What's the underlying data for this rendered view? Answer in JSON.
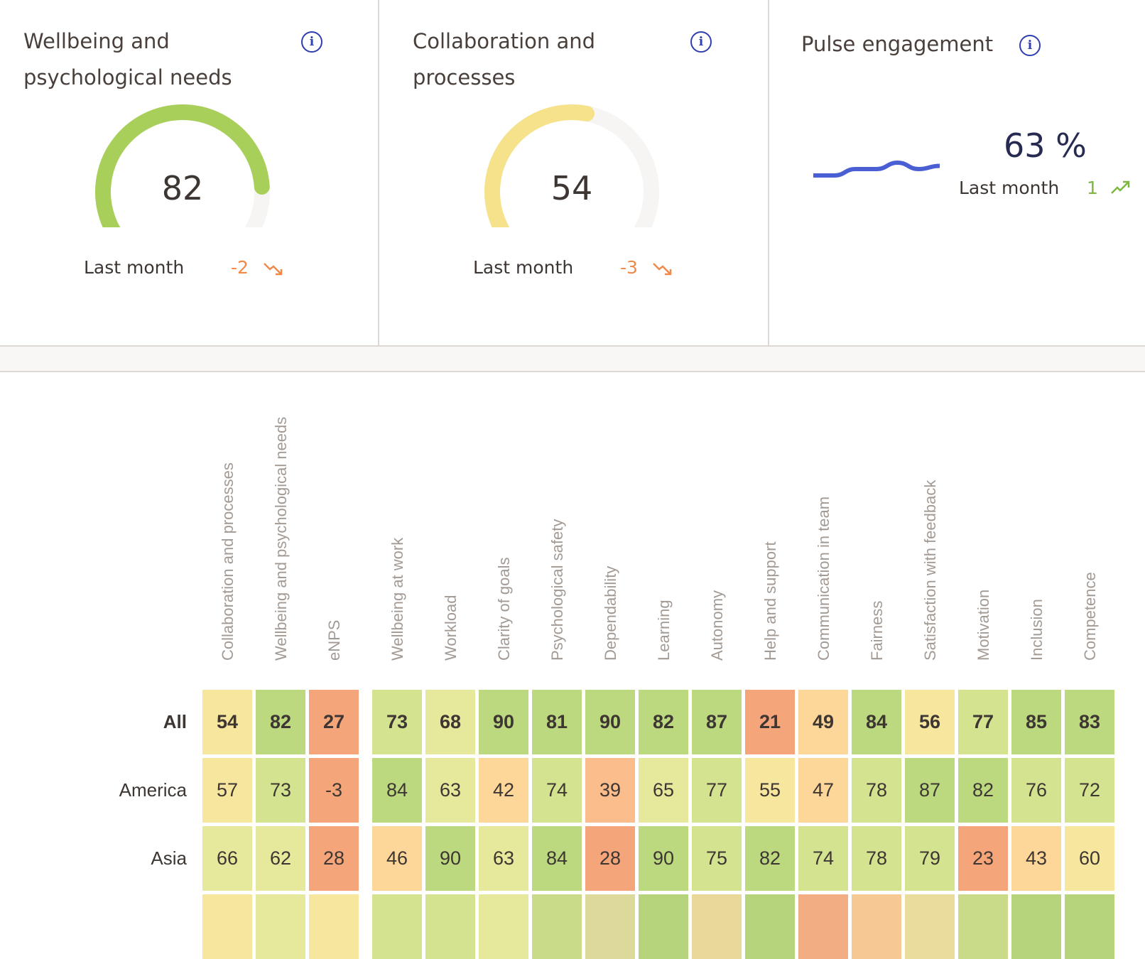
{
  "cards": [
    {
      "title_line1": "Wellbeing and",
      "title_line2": "psychological needs",
      "value": 82,
      "value_text": "82",
      "last_month_label": "Last month",
      "delta": "-2",
      "trend": "down",
      "gauge_color": "#a8cf5a",
      "delta_color": "#f08a4b",
      "info_icon": "info-icon"
    },
    {
      "title_line1": "Collaboration and",
      "title_line2": "processes",
      "value": 54,
      "value_text": "54",
      "last_month_label": "Last month",
      "delta": "-3",
      "trend": "down",
      "gauge_color": "#f5e28a",
      "delta_color": "#f08a4b",
      "info_icon": "info-icon"
    }
  ],
  "pulse": {
    "title": "Pulse engagement",
    "value_text": "63 %",
    "last_month_label": "Last month",
    "delta": "1",
    "trend": "up",
    "delta_color": "#7cb83e",
    "value_color": "#272b52",
    "line_color": "#4a5fd4",
    "sparkline": [
      60,
      60,
      61,
      61,
      62,
      61,
      61.5
    ]
  },
  "heatmap": {
    "group1": [
      "Collaboration and processes",
      "Wellbeing and psychological needs",
      "eNPS"
    ],
    "group2": [
      "Wellbeing at work",
      "Workload",
      "Clarity of goals",
      "Psychological safety",
      "Dependability",
      "Learning",
      "Autonomy",
      "Help and support",
      "Communication in team",
      "Fairness",
      "Satisfaction with feedback",
      "Motivation",
      "Inclusion",
      "Competence"
    ],
    "rows": [
      {
        "label": "All",
        "bold": true,
        "values": [
          "54",
          "82",
          "27",
          "73",
          "68",
          "90",
          "81",
          "90",
          "82",
          "87",
          "21",
          "49",
          "84",
          "56",
          "77",
          "85",
          "83"
        ]
      },
      {
        "label": "America",
        "bold": false,
        "values": [
          "57",
          "73",
          "-3",
          "84",
          "63",
          "42",
          "74",
          "39",
          "65",
          "77",
          "55",
          "47",
          "78",
          "87",
          "82",
          "76",
          "72"
        ]
      },
      {
        "label": "Asia",
        "bold": false,
        "values": [
          "66",
          "62",
          "28",
          "46",
          "90",
          "63",
          "84",
          "28",
          "90",
          "75",
          "82",
          "74",
          "78",
          "79",
          "23",
          "43",
          "60"
        ]
      }
    ],
    "partial_row_colors": [
      "#f7e79e",
      "#e6e89c",
      "#f7e79e",
      "#d4e38f",
      "#d4e38f",
      "#e6e89c",
      "#c9da88",
      "#dcd99a",
      "#b5d47c",
      "#ead89a",
      "#b5d47c",
      "#f2ad82",
      "#f6c894",
      "#e9dc9d",
      "#c9da88",
      "#b5d47c",
      "#b5d47c"
    ]
  }
}
